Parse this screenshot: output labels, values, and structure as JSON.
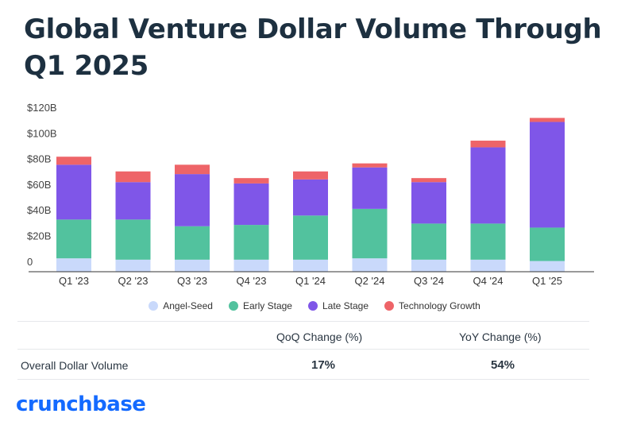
{
  "title": "Global Venture Dollar Volume Through Q1 2025",
  "colors": {
    "angel_seed": "#c9d9fb",
    "early_stage": "#52c29e",
    "late_stage": "#7f56e8",
    "technology_growth": "#ee6468"
  },
  "chart_data": {
    "type": "bar",
    "stacked": true,
    "categories": [
      "Q1 '23",
      "Q2 '23",
      "Q3 '23",
      "Q4 '23",
      "Q1 '24",
      "Q2 '24",
      "Q3 '24",
      "Q4 '24",
      "Q1 '25"
    ],
    "series": [
      {
        "name": "Angel-Seed",
        "color": "#c9d9fb",
        "values": [
          10,
          9,
          9,
          9,
          9,
          10,
          9,
          9,
          8
        ]
      },
      {
        "name": "Early Stage",
        "color": "#52c29e",
        "values": [
          29,
          30,
          25,
          26,
          33,
          37,
          27,
          27,
          25
        ]
      },
      {
        "name": "Late Stage",
        "color": "#7f56e8",
        "values": [
          41,
          28,
          39,
          31,
          27,
          31,
          31,
          57,
          79
        ]
      },
      {
        "name": "Technology Growth",
        "color": "#ee6468",
        "values": [
          6,
          8,
          7,
          4,
          6,
          3,
          3,
          5,
          3
        ]
      }
    ],
    "y_ticks": [
      "$120B",
      "$100B",
      "$80B",
      "$60B",
      "$40B",
      "$20B",
      "0"
    ],
    "ylim": [
      0,
      120
    ],
    "grid": false,
    "legend": "bottom"
  },
  "table": {
    "headers": [
      "QoQ Change (%)",
      "YoY Change (%)"
    ],
    "row_label": "Overall Dollar Volume",
    "values": [
      "17%",
      "54%"
    ]
  },
  "brand": "crunchbase"
}
